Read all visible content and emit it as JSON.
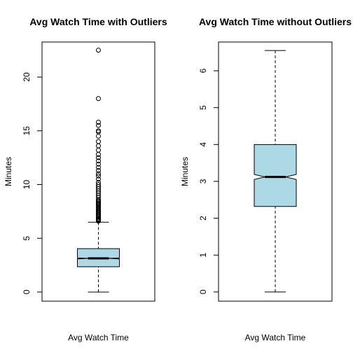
{
  "chart_data": [
    {
      "type": "box",
      "title": "Avg Watch Time with Outliers",
      "ylabel": "Minutes",
      "xlabel": "Avg Watch Time",
      "color": "lightblue",
      "notched": true,
      "ylim": [
        -0.85,
        23.26
      ],
      "yticks": [
        0,
        5,
        10,
        15,
        20
      ],
      "box": {
        "min": 0,
        "q1": 2.35,
        "median": 3.13,
        "q3": 4.04,
        "max": 6.5,
        "notch": [
          3.08,
          3.17
        ],
        "outliers": [
          6.6,
          6.65,
          6.7,
          6.75,
          6.8,
          6.9,
          7.0,
          7.1,
          7.2,
          7.3,
          7.4,
          7.5,
          7.6,
          7.7,
          7.8,
          7.9,
          8.0,
          8.1,
          8.2,
          8.3,
          8.4,
          8.5,
          8.6,
          8.8,
          9.0,
          9.2,
          9.4,
          9.6,
          9.8,
          10.0,
          10.2,
          10.5,
          10.8,
          11.0,
          11.3,
          11.6,
          11.9,
          12.2,
          12.5,
          12.8,
          13.2,
          13.6,
          14.0,
          14.5,
          14.9,
          15.0,
          15.5,
          15.8,
          18.0,
          22.5
        ]
      }
    },
    {
      "type": "box",
      "title": "Avg Watch Time without Outliers",
      "ylabel": "Minutes",
      "xlabel": "Avg Watch Time",
      "color": "lightblue",
      "notched": true,
      "ylim": [
        -0.25,
        6.78
      ],
      "yticks": [
        0,
        1,
        2,
        3,
        4,
        5,
        6
      ],
      "box": {
        "min": 0,
        "q1": 2.32,
        "median": 3.12,
        "q3": 4.0,
        "max": 6.55,
        "notch": [
          3.05,
          3.19
        ],
        "outliers": []
      }
    }
  ]
}
